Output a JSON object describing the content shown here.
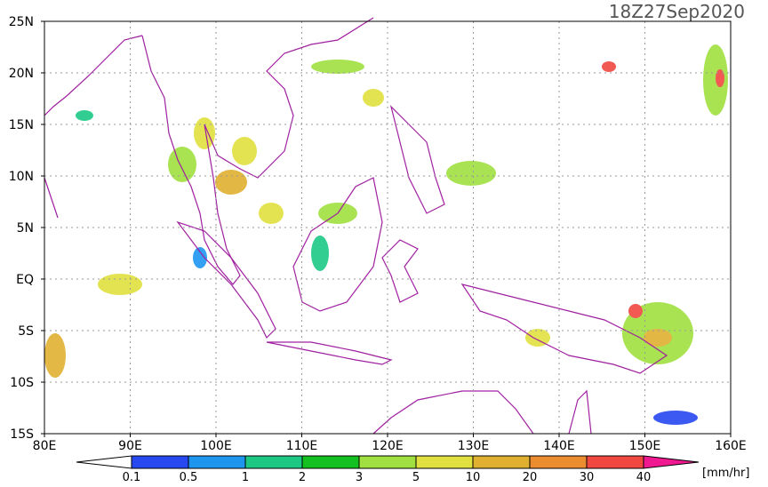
{
  "map": {
    "title": "18Z27Sep2020",
    "lonlim": [
      80,
      160
    ],
    "latlim": [
      -15,
      25
    ],
    "lon_ticks": [
      {
        "value": 80,
        "label": "80E"
      },
      {
        "value": 90,
        "label": "90E"
      },
      {
        "value": 100,
        "label": "100E"
      },
      {
        "value": 110,
        "label": "110E"
      },
      {
        "value": 120,
        "label": "120E"
      },
      {
        "value": 130,
        "label": "130E"
      },
      {
        "value": 140,
        "label": "140E"
      },
      {
        "value": 150,
        "label": "150E"
      },
      {
        "value": 160,
        "label": "160E"
      }
    ],
    "lat_ticks": [
      {
        "value": 25,
        "label": "25N"
      },
      {
        "value": 20,
        "label": "20N"
      },
      {
        "value": 15,
        "label": "15N"
      },
      {
        "value": 10,
        "label": "10N"
      },
      {
        "value": 5,
        "label": "5N"
      },
      {
        "value": 0,
        "label": "EQ"
      },
      {
        "value": -5,
        "label": "5S"
      },
      {
        "value": -10,
        "label": "10S"
      },
      {
        "value": -15,
        "label": "15S"
      }
    ],
    "grid": true,
    "colorbar": {
      "ticks": [
        0.1,
        0.5,
        1,
        2,
        3,
        5,
        10,
        20,
        30,
        40
      ],
      "colors": [
        "#ffffff",
        "#2848f0",
        "#1e96f0",
        "#1cc884",
        "#14c020",
        "#a0e040",
        "#e0e040",
        "#e0b030",
        "#ec8c30",
        "#f04840",
        "#f01890"
      ],
      "unit": "[mm/hr]"
    }
  }
}
